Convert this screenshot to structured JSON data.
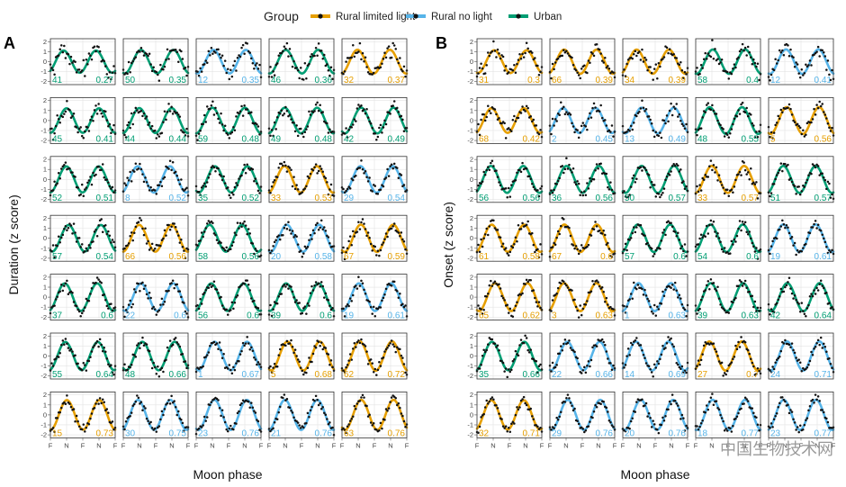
{
  "legend": {
    "title": "Group",
    "items": [
      {
        "label": "Rural limited light",
        "color": "#E69F00"
      },
      {
        "label": "Rural no light",
        "color": "#56B4E9"
      },
      {
        "label": "Urban",
        "color": "#009E73"
      }
    ]
  },
  "watermark": "中国生物技术网",
  "chart_data": [
    {
      "type": "line",
      "panel_label": "A",
      "xlabel": "Moon phase",
      "ylabel": "Duration (z score)",
      "ylim": [
        -2.3,
        2.3
      ],
      "y_ticks": [
        "2",
        "1",
        "0",
        "-1",
        "-2"
      ],
      "x_ticks": [
        "F",
        "N",
        "F",
        "N",
        "F"
      ],
      "grid": true,
      "facets": [
        {
          "id": "41",
          "value": "0.27",
          "group": "Urban"
        },
        {
          "id": "50",
          "value": "0.35",
          "group": "Urban"
        },
        {
          "id": "12",
          "value": "0.35",
          "group": "Rural no light"
        },
        {
          "id": "46",
          "value": "0.36",
          "group": "Urban"
        },
        {
          "id": "32",
          "value": "0.37",
          "group": "Rural limited light"
        },
        {
          "id": "45",
          "value": "0.41",
          "group": "Urban"
        },
        {
          "id": "44",
          "value": "0.44",
          "group": "Urban"
        },
        {
          "id": "59",
          "value": "0.48",
          "group": "Urban"
        },
        {
          "id": "49",
          "value": "0.48",
          "group": "Urban"
        },
        {
          "id": "42",
          "value": "0.49",
          "group": "Urban"
        },
        {
          "id": "52",
          "value": "0.51",
          "group": "Urban"
        },
        {
          "id": "8",
          "value": "0.52",
          "group": "Rural no light"
        },
        {
          "id": "35",
          "value": "0.52",
          "group": "Urban"
        },
        {
          "id": "33",
          "value": "0.53",
          "group": "Rural limited light"
        },
        {
          "id": "29",
          "value": "0.54",
          "group": "Rural no light"
        },
        {
          "id": "57",
          "value": "0.54",
          "group": "Urban"
        },
        {
          "id": "66",
          "value": "0.56",
          "group": "Rural limited light"
        },
        {
          "id": "58",
          "value": "0.56",
          "group": "Urban"
        },
        {
          "id": "20",
          "value": "0.58",
          "group": "Rural no light"
        },
        {
          "id": "67",
          "value": "0.59",
          "group": "Rural limited light"
        },
        {
          "id": "37",
          "value": "0.6",
          "group": "Urban"
        },
        {
          "id": "22",
          "value": "0.6",
          "group": "Rural no light"
        },
        {
          "id": "56",
          "value": "0.6",
          "group": "Urban"
        },
        {
          "id": "39",
          "value": "0.6",
          "group": "Urban"
        },
        {
          "id": "19",
          "value": "0.61",
          "group": "Rural no light"
        },
        {
          "id": "55",
          "value": "0.64",
          "group": "Urban"
        },
        {
          "id": "48",
          "value": "0.66",
          "group": "Urban"
        },
        {
          "id": "1",
          "value": "0.67",
          "group": "Rural no light"
        },
        {
          "id": "5",
          "value": "0.68",
          "group": "Rural limited light"
        },
        {
          "id": "62",
          "value": "0.72",
          "group": "Rural limited light"
        },
        {
          "id": "15",
          "value": "0.73",
          "group": "Rural limited light"
        },
        {
          "id": "30",
          "value": "0.75",
          "group": "Rural no light"
        },
        {
          "id": "23",
          "value": "0.76",
          "group": "Rural no light"
        },
        {
          "id": "21",
          "value": "0.76",
          "group": "Rural no light"
        },
        {
          "id": "63",
          "value": "0.76",
          "group": "Rural limited light"
        }
      ]
    },
    {
      "type": "line",
      "panel_label": "B",
      "xlabel": "Moon phase",
      "ylabel": "Onset (z score)",
      "ylim": [
        -2.3,
        2.3
      ],
      "y_ticks": [
        "2",
        "1",
        "0",
        "-1",
        "-2"
      ],
      "x_ticks": [
        "F",
        "N",
        "F",
        "N",
        "F"
      ],
      "grid": true,
      "facets": [
        {
          "id": "31",
          "value": "0.3",
          "group": "Rural limited light"
        },
        {
          "id": "66",
          "value": "0.39",
          "group": "Rural limited light"
        },
        {
          "id": "34",
          "value": "0.39",
          "group": "Rural limited light"
        },
        {
          "id": "58",
          "value": "0.4",
          "group": "Urban"
        },
        {
          "id": "12",
          "value": "0.41",
          "group": "Rural no light"
        },
        {
          "id": "68",
          "value": "0.42",
          "group": "Rural limited light"
        },
        {
          "id": "2",
          "value": "0.45",
          "group": "Rural no light"
        },
        {
          "id": "13",
          "value": "0.49",
          "group": "Rural no light"
        },
        {
          "id": "48",
          "value": "0.55",
          "group": "Urban"
        },
        {
          "id": "5",
          "value": "0.56",
          "group": "Rural limited light"
        },
        {
          "id": "56",
          "value": "0.56",
          "group": "Urban"
        },
        {
          "id": "36",
          "value": "0.56",
          "group": "Urban"
        },
        {
          "id": "50",
          "value": "0.57",
          "group": "Urban"
        },
        {
          "id": "33",
          "value": "0.57",
          "group": "Rural limited light"
        },
        {
          "id": "51",
          "value": "0.57",
          "group": "Urban"
        },
        {
          "id": "61",
          "value": "0.58",
          "group": "Rural limited light"
        },
        {
          "id": "67",
          "value": "0.6",
          "group": "Rural limited light"
        },
        {
          "id": "57",
          "value": "0.6",
          "group": "Urban"
        },
        {
          "id": "54",
          "value": "0.6",
          "group": "Urban"
        },
        {
          "id": "19",
          "value": "0.61",
          "group": "Rural no light"
        },
        {
          "id": "65",
          "value": "0.62",
          "group": "Rural limited light"
        },
        {
          "id": "3",
          "value": "0.63",
          "group": "Rural limited light"
        },
        {
          "id": "1",
          "value": "0.63",
          "group": "Rural no light"
        },
        {
          "id": "39",
          "value": "0.63",
          "group": "Urban"
        },
        {
          "id": "42",
          "value": "0.64",
          "group": "Urban"
        },
        {
          "id": "35",
          "value": "0.66",
          "group": "Urban"
        },
        {
          "id": "22",
          "value": "0.66",
          "group": "Rural no light"
        },
        {
          "id": "14",
          "value": "0.69",
          "group": "Rural no light"
        },
        {
          "id": "27",
          "value": "0.7",
          "group": "Rural limited light"
        },
        {
          "id": "24",
          "value": "0.71",
          "group": "Rural no light"
        },
        {
          "id": "32",
          "value": "0.71",
          "group": "Rural limited light"
        },
        {
          "id": "29",
          "value": "0.76",
          "group": "Rural no light"
        },
        {
          "id": "20",
          "value": "0.76",
          "group": "Rural no light"
        },
        {
          "id": "18",
          "value": "0.77",
          "group": "Rural no light"
        },
        {
          "id": "23",
          "value": "0.77",
          "group": "Rural no light"
        }
      ]
    }
  ]
}
